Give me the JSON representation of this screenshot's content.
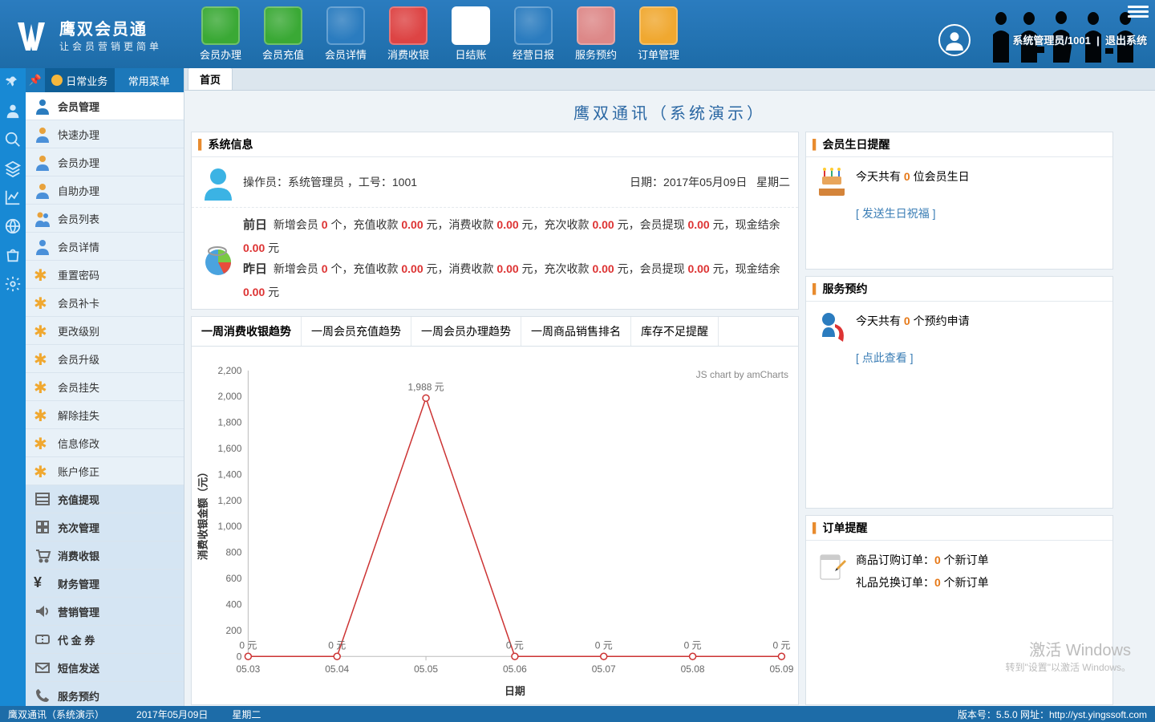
{
  "app": {
    "name": "鹰双会员通",
    "slogan": "让会员营销更简单"
  },
  "toolbar": [
    {
      "id": "member-reg",
      "label": "会员办理"
    },
    {
      "id": "member-recharge",
      "label": "会员充值"
    },
    {
      "id": "member-detail",
      "label": "会员详情"
    },
    {
      "id": "consume-cash",
      "label": "消费收银"
    },
    {
      "id": "day-close",
      "label": "日结账"
    },
    {
      "id": "daily-report",
      "label": "经营日报"
    },
    {
      "id": "service-booking",
      "label": "服务预约"
    },
    {
      "id": "order-mgmt",
      "label": "订单管理"
    }
  ],
  "toolbar_colors": [
    "#3aa935",
    "#3aa935",
    "#2b7cbf",
    "#d44",
    "#fff",
    "#2b7cbf",
    "#d88",
    "#f0a830"
  ],
  "user": {
    "line": "系统管理员/1001",
    "logout": "退出系统"
  },
  "side_tabs": {
    "a": "日常业务",
    "b": "常用菜单"
  },
  "sidebar": [
    {
      "label": "会员管理",
      "type": "section",
      "icon": "person"
    },
    {
      "label": "快速办理",
      "icon": "person-y"
    },
    {
      "label": "会员办理",
      "icon": "person-y"
    },
    {
      "label": "自助办理",
      "icon": "person-y"
    },
    {
      "label": "会员列表",
      "icon": "people"
    },
    {
      "label": "会员详情",
      "icon": "person-b"
    },
    {
      "label": "重置密码",
      "icon": "star"
    },
    {
      "label": "会员补卡",
      "icon": "star"
    },
    {
      "label": "更改级别",
      "icon": "star"
    },
    {
      "label": "会员升级",
      "icon": "star"
    },
    {
      "label": "会员挂失",
      "icon": "star"
    },
    {
      "label": "解除挂失",
      "icon": "star"
    },
    {
      "label": "信息修改",
      "icon": "star"
    },
    {
      "label": "账户修正",
      "icon": "star"
    },
    {
      "label": "充值提现",
      "type": "section",
      "icon": "list"
    },
    {
      "label": "充次管理",
      "type": "section",
      "icon": "grid"
    },
    {
      "label": "消费收银",
      "type": "section",
      "icon": "cart"
    },
    {
      "label": "财务管理",
      "type": "section",
      "icon": "yen"
    },
    {
      "label": "营销管理",
      "type": "section",
      "icon": "speaker"
    },
    {
      "label": "代 金 券",
      "type": "section",
      "icon": "ticket"
    },
    {
      "label": "短信发送",
      "type": "section",
      "icon": "mail"
    },
    {
      "label": "服务预约",
      "type": "section",
      "icon": "phone"
    }
  ],
  "page_tab": "首页",
  "page_title": "鹰双通讯（系统演示）",
  "sys_panel_title": "系统信息",
  "sys_operator_line": {
    "op_label": "操作员：",
    "op": "系统管理员 ，工号：1001",
    "date_label": "日期：",
    "date": "2017年05月09日",
    "weekday": "星期二"
  },
  "sys_days": [
    {
      "day": "前日",
      "new_members": "0",
      "recharge": "0.00",
      "consume": "0.00",
      "recharge_times": "0.00",
      "withdraw": "0.00",
      "cash": "0.00"
    },
    {
      "day": "昨日",
      "new_members": "0",
      "recharge": "0.00",
      "consume": "0.00",
      "recharge_times": "0.00",
      "withdraw": "0.00",
      "cash": "0.00"
    }
  ],
  "sys_day_tpl": {
    "seg1": "新增会员 ",
    "seg1u": " 个，充值收款 ",
    "seg2": " 元，消费收款 ",
    "seg3": " 元，充次收款 ",
    "seg4": " 元，会员提现 ",
    "seg5": " 元，现金结余 ",
    "seg6": " 元"
  },
  "chart_tabs": [
    "一周消费收银趋势",
    "一周会员充值趋势",
    "一周会员办理趋势",
    "一周商品销售排名",
    "库存不足提醒"
  ],
  "chart": {
    "type": "line",
    "credit": "JS chart by amCharts",
    "ylabel": "消费收银金额（元）",
    "xlabel": "日期",
    "ylim": [
      0,
      2200
    ],
    "ytick_step": 200,
    "categories": [
      "05.03",
      "05.04",
      "05.05",
      "05.06",
      "05.07",
      "05.08",
      "05.09"
    ],
    "values": [
      0,
      0,
      1988,
      0,
      0,
      0,
      0
    ],
    "point_labels": [
      "0 元",
      "0 元",
      "1,988 元",
      "0 元",
      "0 元",
      "0 元",
      "0 元"
    ],
    "line_color": "#cc3333",
    "marker_color": "#cc3333",
    "bg": "#ffffff",
    "grid_color": "#dddddd",
    "axis_color": "#bbbbbb",
    "text_color": "#666666",
    "marker_size": 4
  },
  "birthday_panel": {
    "title": "会员生日提醒",
    "text_a": "今天共有 ",
    "count": "0",
    "text_b": " 位会员生日",
    "link": "发送生日祝福"
  },
  "booking_panel": {
    "title": "服务预约",
    "text_a": "今天共有 ",
    "count": "0",
    "text_b": " 个预约申请",
    "link": "点此查看"
  },
  "order_panel": {
    "title": "订单提醒",
    "r1a": "商品订购订单：",
    "r1c": "0",
    "r1b": " 个新订单",
    "r2a": "礼品兑换订单：",
    "r2c": "0",
    "r2b": " 个新订单"
  },
  "status": {
    "left": "鹰双通讯（系统演示）",
    "date": "2017年05月09日",
    "weekday": "星期二",
    "right": "版本号：5.5.0 网址：http://yst.yingssoft.com"
  },
  "watermark": {
    "l1": "激活 Windows",
    "l2": "转到\"设置\"以激活 Windows。"
  }
}
